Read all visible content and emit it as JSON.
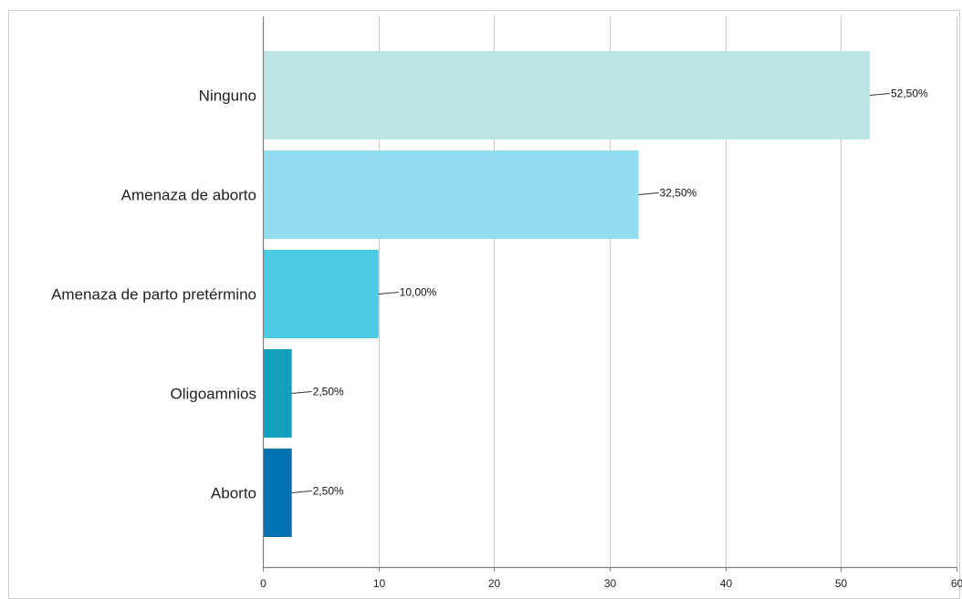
{
  "chart_data": {
    "type": "bar",
    "orientation": "horizontal",
    "title": "",
    "xlabel": "",
    "ylabel": "",
    "categories": [
      "Ninguno",
      "Amenaza de aborto",
      "Amenaza de parto pretérmino",
      "Oligoamnios",
      "Aborto"
    ],
    "values": [
      52.5,
      32.5,
      10.0,
      2.5,
      2.5
    ],
    "data_labels": [
      "52,50%",
      "32,50%",
      "10,00%",
      "2,50%",
      "2,50%"
    ],
    "colors": [
      "#bde6e6",
      "#92def0",
      "#4dcbe5",
      "#149fbe",
      "#0072b1"
    ],
    "xlim": [
      0,
      60
    ],
    "xticks": [
      0,
      10,
      20,
      30,
      40,
      50,
      60
    ],
    "xtick_labels": [
      "0",
      "10",
      "20",
      "30",
      "40",
      "50",
      "60"
    ],
    "grid": true,
    "legend": "none"
  }
}
